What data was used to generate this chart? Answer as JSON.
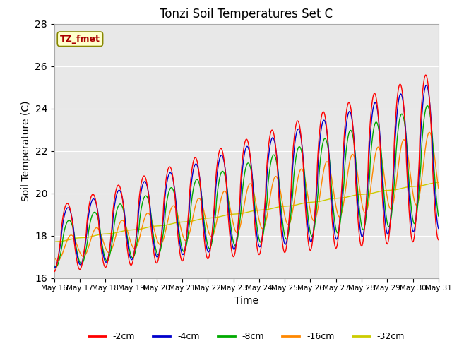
{
  "title": "Tonzi Soil Temperatures Set C",
  "xlabel": "Time",
  "ylabel": "Soil Temperature (C)",
  "ylim": [
    16,
    28
  ],
  "yticks": [
    16,
    18,
    20,
    22,
    24,
    26,
    28
  ],
  "xtick_labels": [
    "May 16",
    "May 17",
    "May 18",
    "May 19",
    "May 20",
    "May 21",
    "May 22",
    "May 23",
    "May 24",
    "May 25",
    "May 26",
    "May 27",
    "May 28",
    "May 29",
    "May 30",
    "May 31"
  ],
  "legend_label": "TZ_fmet",
  "series_labels": [
    "-2cm",
    "-4cm",
    "-8cm",
    "-16cm",
    "-32cm"
  ],
  "series_colors": [
    "#ff0000",
    "#0000cc",
    "#00aa00",
    "#ff8800",
    "#cccc00"
  ],
  "line_width": 1.0,
  "bg_color": "#e8e8e8",
  "fig_bg": "#ffffff",
  "note_color": "#aa0000",
  "note_bg": "#ffffcc",
  "note_edge": "#888800"
}
